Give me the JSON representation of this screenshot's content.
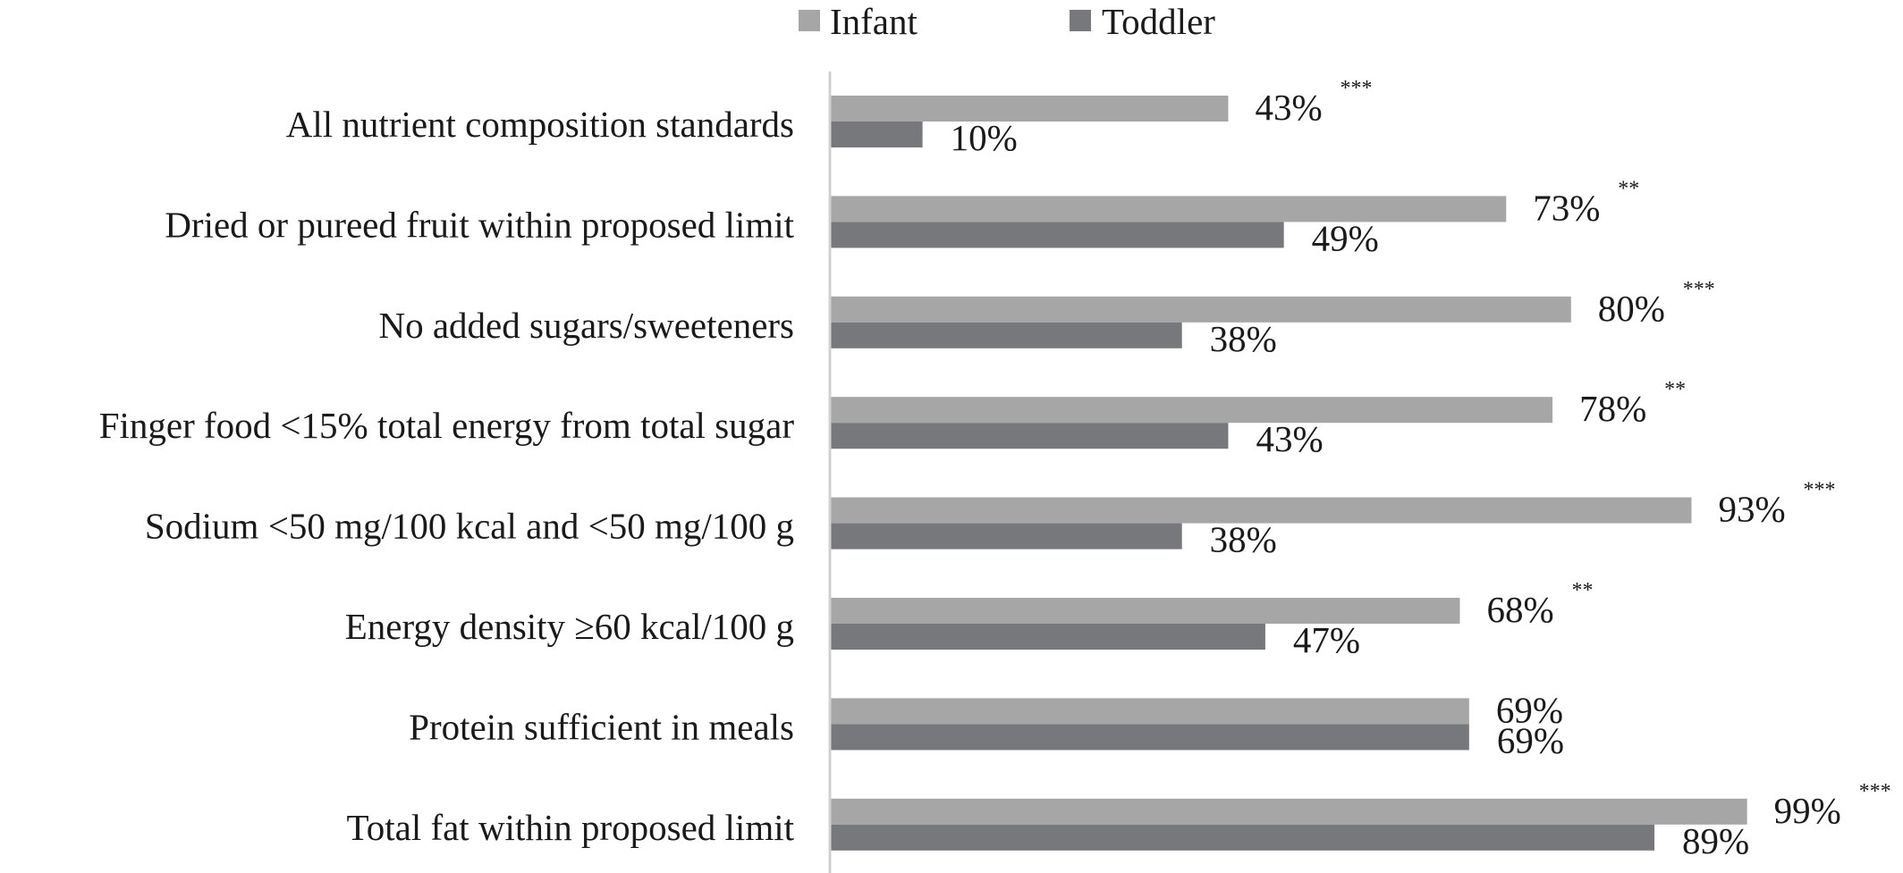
{
  "chart_data": {
    "type": "bar",
    "orientation": "horizontal",
    "categories": [
      "All nutrient composition standards",
      "Dried or pureed fruit within proposed limit",
      "No added sugars/sweeteners",
      "Finger food <15% total energy from total sugar",
      "Sodium <50 mg/100 kcal and <50 mg/100 g",
      "Energy density ≥60 kcal/100 g",
      "Protein sufficient in meals",
      "Total fat within proposed limit"
    ],
    "series": [
      {
        "name": "Infant",
        "color": "#a6a6a6",
        "values": [
          43,
          73,
          80,
          78,
          93,
          68,
          69,
          99
        ],
        "labels": [
          "43%",
          "73%",
          "80%",
          "78%",
          "93%",
          "68%",
          "69%",
          "99%"
        ],
        "significance": [
          "***",
          "**",
          "***",
          "**",
          "***",
          "**",
          "",
          "***"
        ]
      },
      {
        "name": "Toddler",
        "color": "#77787b",
        "values": [
          10,
          49,
          38,
          43,
          38,
          47,
          69,
          89
        ],
        "labels": [
          "10%",
          "49%",
          "38%",
          "43%",
          "38%",
          "47%",
          "69%",
          "89%"
        ],
        "significance": [
          "",
          "",
          "",
          "",
          "",
          "",
          "",
          ""
        ]
      }
    ],
    "xlim": [
      0,
      100
    ],
    "grid": false,
    "legend_position": "top-center",
    "axis_color": "#d0d0d0"
  }
}
